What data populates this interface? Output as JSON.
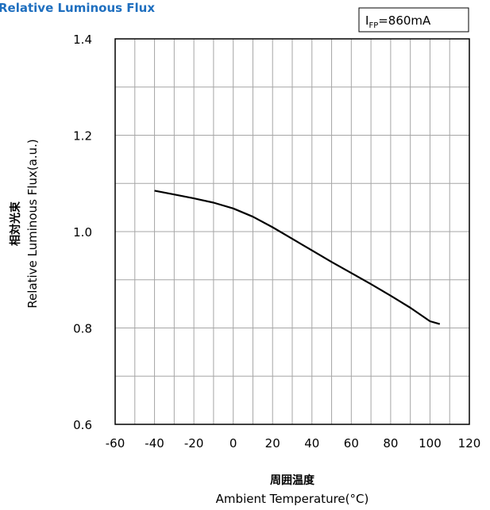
{
  "chart_data": {
    "type": "line",
    "title": "Relative Luminous Flux",
    "annotation": {
      "main": "I",
      "sub": "FP",
      "rest": "=860mA"
    },
    "xlabel": "Ambient Temperature(°C)",
    "xlabel_jp": "周囲温度",
    "ylabel": "Relative Luminous Flux(a.u.)",
    "ylabel_jp": "相対光束",
    "xlim": [
      -60,
      120
    ],
    "ylim": [
      0.6,
      1.4
    ],
    "xticks": [
      "-60",
      "-40",
      "-20",
      "0",
      "20",
      "40",
      "60",
      "80",
      "100",
      "120"
    ],
    "yticks": [
      "0.6",
      "0.8",
      "1.0",
      "1.2",
      "1.4"
    ],
    "grid": true,
    "series": [
      {
        "color": "#000000",
        "x": [
          -40,
          -30,
          -20,
          -10,
          0,
          10,
          20,
          30,
          40,
          50,
          60,
          70,
          80,
          90,
          100,
          105
        ],
        "y": [
          1.085,
          1.077,
          1.069,
          1.06,
          1.048,
          1.031,
          1.009,
          0.985,
          0.961,
          0.937,
          0.914,
          0.891,
          0.867,
          0.842,
          0.814,
          0.808
        ]
      }
    ]
  }
}
